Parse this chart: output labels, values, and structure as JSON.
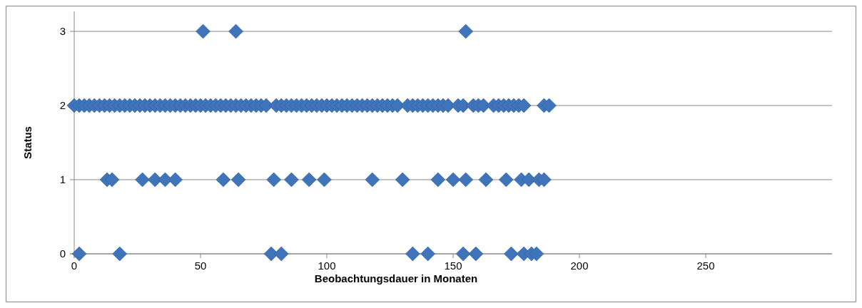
{
  "chart_data": {
    "type": "scatter",
    "xlabel": "Beobachtungsdauer in Monaten",
    "ylabel": "Status",
    "xlim": [
      0,
      300
    ],
    "xticks": [
      0,
      50,
      100,
      150,
      200,
      250
    ],
    "ylim": [
      0,
      3
    ],
    "yticks": [
      0,
      1,
      2,
      3
    ],
    "grid": "y",
    "marker": "diamond",
    "series": [
      {
        "color": "#3f74ba",
        "x": [
          51,
          64,
          155
        ],
        "values": [
          3,
          3,
          3
        ]
      },
      {
        "color": "#3f74ba",
        "x": [
          0,
          2,
          4,
          6,
          8,
          10,
          12,
          14,
          16,
          18,
          20,
          22,
          24,
          26,
          28,
          30,
          32,
          34,
          36,
          38,
          40,
          42,
          44,
          46,
          48,
          50,
          52,
          54,
          56,
          58,
          60,
          62,
          64,
          66,
          68,
          70,
          72,
          74,
          76,
          80,
          82,
          84,
          86,
          88,
          90,
          92,
          94,
          96,
          98,
          100,
          102,
          104,
          106,
          108,
          110,
          112,
          114,
          116,
          118,
          120,
          122,
          124,
          126,
          128,
          132,
          134,
          136,
          138,
          140,
          142,
          144,
          146,
          148,
          152,
          154,
          158,
          160,
          162,
          166,
          168,
          170,
          172,
          174,
          176,
          178,
          186,
          188
        ],
        "values": [
          2,
          2,
          2,
          2,
          2,
          2,
          2,
          2,
          2,
          2,
          2,
          2,
          2,
          2,
          2,
          2,
          2,
          2,
          2,
          2,
          2,
          2,
          2,
          2,
          2,
          2,
          2,
          2,
          2,
          2,
          2,
          2,
          2,
          2,
          2,
          2,
          2,
          2,
          2,
          2,
          2,
          2,
          2,
          2,
          2,
          2,
          2,
          2,
          2,
          2,
          2,
          2,
          2,
          2,
          2,
          2,
          2,
          2,
          2,
          2,
          2,
          2,
          2,
          2,
          2,
          2,
          2,
          2,
          2,
          2,
          2,
          2,
          2,
          2,
          2,
          2,
          2,
          2,
          2,
          2,
          2,
          2,
          2,
          2,
          2,
          2,
          2
        ]
      },
      {
        "color": "#3f74ba",
        "x": [
          13,
          15,
          27,
          32,
          36,
          40,
          59,
          65,
          79,
          86,
          93,
          99,
          118,
          130,
          144,
          150,
          155,
          163,
          171,
          177,
          180,
          184,
          186
        ],
        "values": [
          1,
          1,
          1,
          1,
          1,
          1,
          1,
          1,
          1,
          1,
          1,
          1,
          1,
          1,
          1,
          1,
          1,
          1,
          1,
          1,
          1,
          1,
          1
        ]
      },
      {
        "color": "#3f74ba",
        "x": [
          2,
          18,
          78,
          82,
          134,
          140,
          154,
          159,
          173,
          178,
          181,
          183
        ],
        "values": [
          0,
          0,
          0,
          0,
          0,
          0,
          0,
          0,
          0,
          0,
          0,
          0
        ]
      }
    ]
  }
}
